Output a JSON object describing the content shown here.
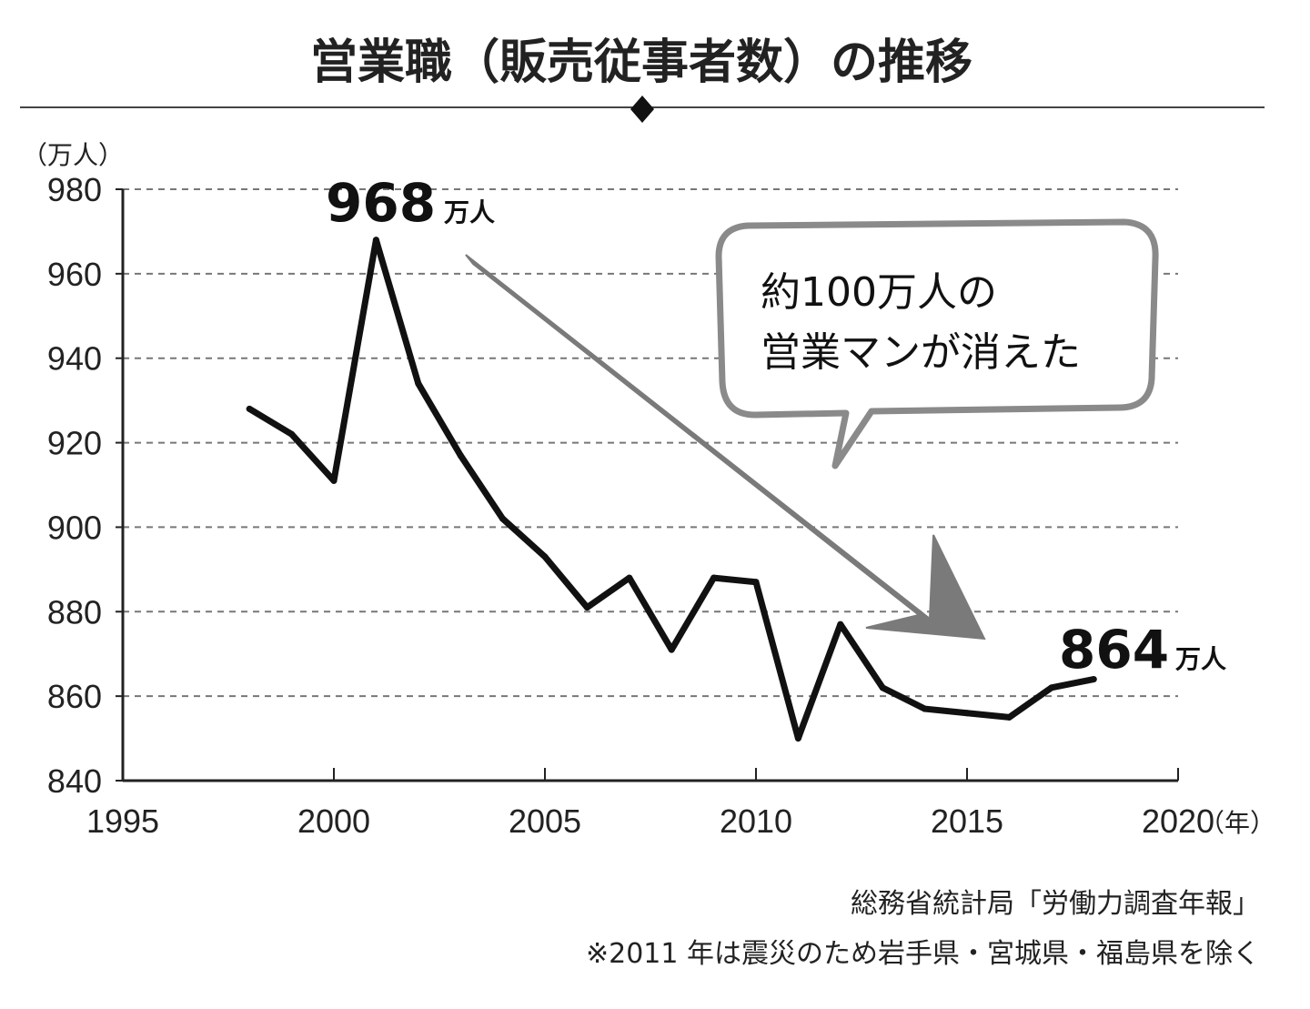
{
  "chart_data": {
    "type": "line",
    "title": "営業職（販売従事者数）の推移",
    "y_unit_label": "（万人）",
    "x_unit_label": "（年）",
    "xlim": [
      1995,
      2020
    ],
    "ylim": [
      840,
      980
    ],
    "x_ticks": [
      1995,
      2000,
      2005,
      2010,
      2015,
      2020
    ],
    "y_ticks": [
      840,
      860,
      880,
      900,
      920,
      940,
      960,
      980
    ],
    "grid": "horizontal-dashed",
    "series": [
      {
        "x": [
          1998,
          1999,
          2000,
          2001,
          2002,
          2003,
          2004,
          2005,
          2006,
          2007,
          2008,
          2009,
          2010,
          2011,
          2012,
          2013,
          2014,
          2015,
          2016,
          2017,
          2018
        ],
        "values": [
          928,
          922,
          911,
          968,
          934,
          917,
          902,
          893,
          881,
          888,
          871,
          888,
          887,
          850,
          877,
          862,
          857,
          856,
          855,
          862,
          864
        ]
      }
    ],
    "annotations": [
      {
        "number": "968",
        "unit": "万人"
      },
      {
        "number": "864",
        "unit": "万人"
      }
    ],
    "callout": {
      "line1": "約100万人の",
      "line2": "営業マンが消えた"
    },
    "source_line1": "総務省統計局「労働力調査年報」",
    "source_line2": "※2011 年は震災のため岩手県・宮城県・福島県を除く"
  },
  "colors": {
    "line": "#111111",
    "grid": "#777777",
    "arrow": "#7a7a7a",
    "callout_border": "#8a8a8a",
    "text": "#111111"
  }
}
